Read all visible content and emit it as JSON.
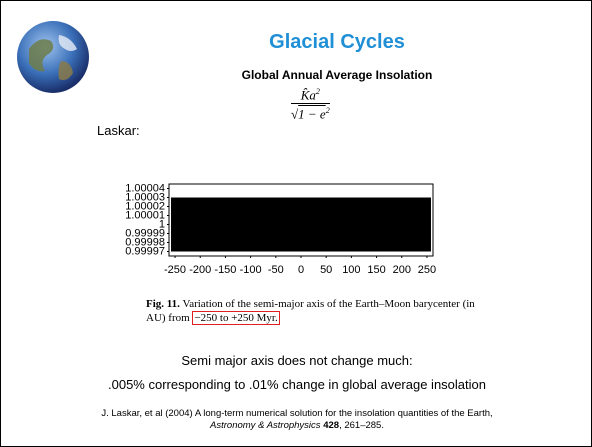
{
  "title": "Glacial Cycles",
  "subtitle": "Global Annual Average Insolation",
  "formula": {
    "numerator": "K̂a",
    "numerator_exp": "2",
    "root_body": "1 − e",
    "root_exp": "2"
  },
  "label": "Laskar:",
  "chart_data": {
    "type": "band",
    "x": [
      -258,
      258
    ],
    "upper": [
      1.00003,
      1.00003
    ],
    "lower": [
      0.99997,
      0.99997
    ],
    "color": "#000000",
    "xlim": [
      -262,
      262
    ],
    "xticks": [
      -250,
      -200,
      -150,
      -100,
      -50,
      0,
      50,
      100,
      150,
      200,
      250
    ],
    "ylim": [
      0.999965,
      1.000045
    ],
    "yticks": [
      1.00004,
      1.00003,
      1.00002,
      1.00001,
      1,
      0.99999,
      0.99998,
      0.99997
    ]
  },
  "caption": {
    "label": "Fig. 11.",
    "text": "Variation of the semi-major axis of the Earth–Moon barycenter (in AU) from",
    "boxed": "−250 to +250 Myr."
  },
  "body": [
    "Semi major axis does not change much:",
    ".005% corresponding to .01% change in global average insolation"
  ],
  "citation": {
    "line1": "J. Laskar, et al (2004) A long-term numerical solution for the insolation quantities of the Earth,",
    "journal": "Astronomy & Astrophysics",
    "volume": "428",
    "pages": ", 261–285."
  }
}
